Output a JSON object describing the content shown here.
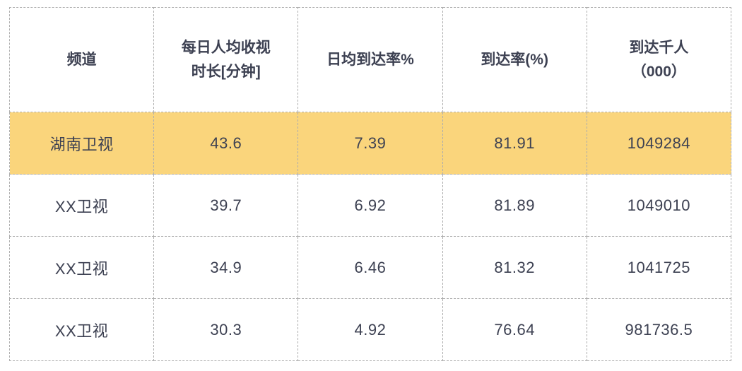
{
  "colors": {
    "highlight_row_background": "#FAD57C",
    "border": "#ADADAD",
    "text": "#3D4152",
    "background": "#FFFFFF"
  },
  "table": {
    "headers": [
      {
        "line1": "频道"
      },
      {
        "line1": "每日人均收视",
        "line2": "时长[分钟]"
      },
      {
        "line1": "日均到达率%"
      },
      {
        "line1": "到达率(%)"
      },
      {
        "line1": "到达千人",
        "line2": "（000）"
      }
    ],
    "rows": [
      {
        "cells": [
          "湖南卫视",
          "43.6",
          "7.39",
          "81.91",
          "1049284"
        ],
        "highlighted": true
      },
      {
        "cells": [
          "XX卫视",
          "39.7",
          "6.92",
          "81.89",
          "1049010"
        ],
        "highlighted": false
      },
      {
        "cells": [
          "XX卫视",
          "34.9",
          "6.46",
          "81.32",
          "1041725"
        ],
        "highlighted": false
      },
      {
        "cells": [
          "XX卫视",
          "30.3",
          "4.92",
          "76.64",
          "981736.5"
        ],
        "highlighted": false
      }
    ]
  },
  "chart_data": {
    "type": "table",
    "columns": [
      "频道",
      "每日人均收视时长[分钟]",
      "日均到达率%",
      "到达率(%)",
      "到达千人（000）"
    ],
    "rows": [
      [
        "湖南卫视",
        43.6,
        7.39,
        81.91,
        1049284
      ],
      [
        "XX卫视",
        39.7,
        6.92,
        81.89,
        1049010
      ],
      [
        "XX卫视",
        34.9,
        6.46,
        81.32,
        1041725
      ],
      [
        "XX卫视",
        30.3,
        4.92,
        76.64,
        981736.5
      ]
    ],
    "highlighted_row_index": 0,
    "highlight_color": "#FAD57C",
    "border_style": "dashed"
  }
}
